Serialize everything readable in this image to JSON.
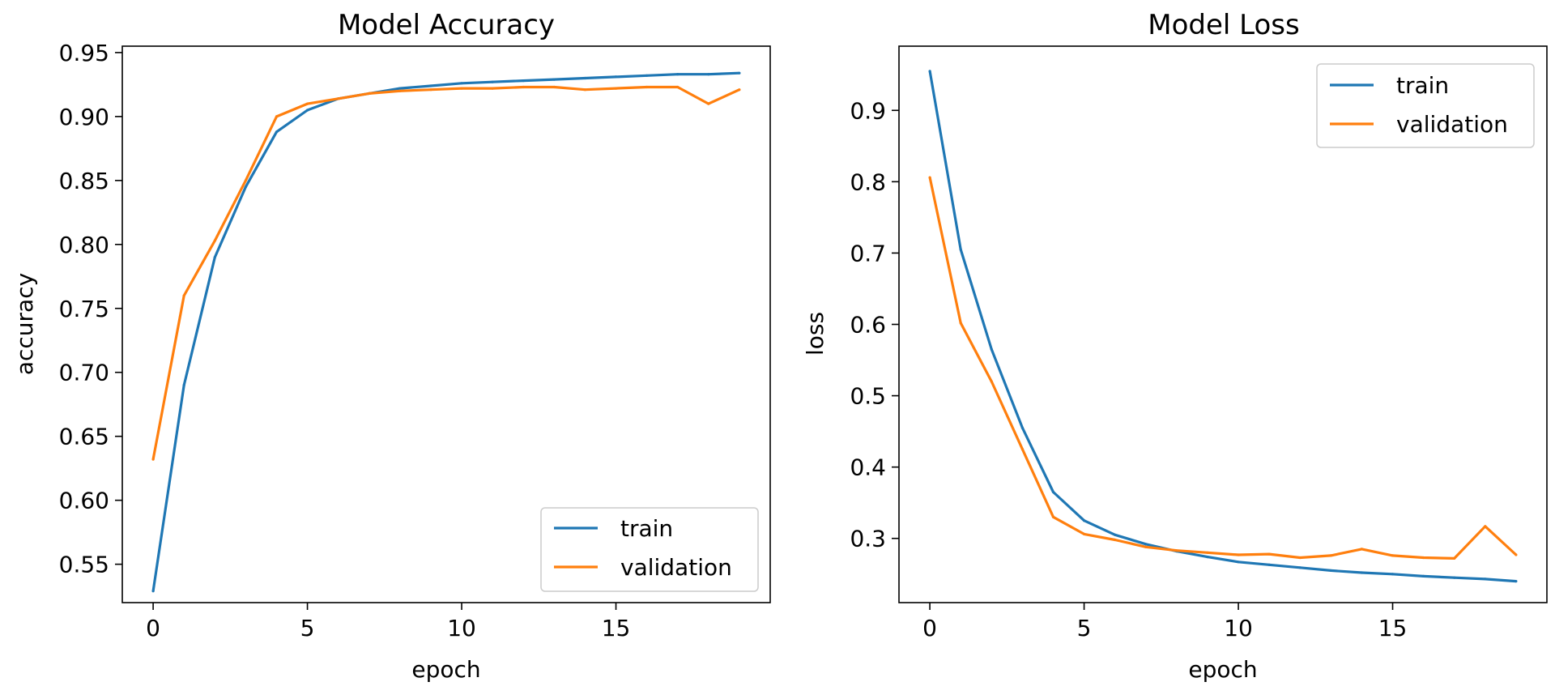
{
  "chart_data": [
    {
      "type": "line",
      "title": "Model Accuracy",
      "xlabel": "epoch",
      "ylabel": "accuracy",
      "xlim": [
        -1,
        20
      ],
      "ylim": [
        0.52,
        0.955
      ],
      "xticks": [
        0,
        5,
        10,
        15
      ],
      "yticks": [
        0.55,
        0.6,
        0.65,
        0.7,
        0.75,
        0.8,
        0.85,
        0.9,
        0.95
      ],
      "ytick_labels": [
        "0.55",
        "0.60",
        "0.65",
        "0.70",
        "0.75",
        "0.80",
        "0.85",
        "0.90",
        "0.95"
      ],
      "legend_position": "bottom-right",
      "x": [
        0,
        1,
        2,
        3,
        4,
        5,
        6,
        7,
        8,
        9,
        10,
        11,
        12,
        13,
        14,
        15,
        16,
        17,
        18,
        19
      ],
      "series": [
        {
          "name": "train",
          "color": "#1f77b4",
          "values": [
            0.529,
            0.69,
            0.79,
            0.845,
            0.888,
            0.905,
            0.914,
            0.918,
            0.922,
            0.924,
            0.926,
            0.927,
            0.928,
            0.929,
            0.93,
            0.931,
            0.932,
            0.933,
            0.933,
            0.934
          ]
        },
        {
          "name": "validation",
          "color": "#ff7f0e",
          "values": [
            0.632,
            0.76,
            0.803,
            0.85,
            0.9,
            0.91,
            0.914,
            0.918,
            0.92,
            0.921,
            0.922,
            0.922,
            0.923,
            0.923,
            0.921,
            0.922,
            0.923,
            0.923,
            0.91,
            0.921
          ]
        }
      ]
    },
    {
      "type": "line",
      "title": "Model Loss",
      "xlabel": "epoch",
      "ylabel": "loss",
      "xlim": [
        -1,
        20
      ],
      "ylim": [
        0.21,
        0.99
      ],
      "xticks": [
        0,
        5,
        10,
        15
      ],
      "yticks": [
        0.3,
        0.4,
        0.5,
        0.6,
        0.7,
        0.8,
        0.9
      ],
      "ytick_labels": [
        "0.3",
        "0.4",
        "0.5",
        "0.6",
        "0.7",
        "0.8",
        "0.9"
      ],
      "legend_position": "top-right",
      "x": [
        0,
        1,
        2,
        3,
        4,
        5,
        6,
        7,
        8,
        9,
        10,
        11,
        12,
        13,
        14,
        15,
        16,
        17,
        18,
        19
      ],
      "series": [
        {
          "name": "train",
          "color": "#1f77b4",
          "values": [
            0.955,
            0.705,
            0.565,
            0.455,
            0.365,
            0.325,
            0.305,
            0.292,
            0.282,
            0.274,
            0.267,
            0.263,
            0.259,
            0.255,
            0.252,
            0.25,
            0.247,
            0.245,
            0.243,
            0.24
          ]
        },
        {
          "name": "validation",
          "color": "#ff7f0e",
          "values": [
            0.806,
            0.602,
            0.52,
            0.425,
            0.33,
            0.306,
            0.298,
            0.288,
            0.283,
            0.28,
            0.277,
            0.278,
            0.273,
            0.276,
            0.285,
            0.276,
            0.273,
            0.272,
            0.317,
            0.277
          ]
        }
      ]
    }
  ]
}
